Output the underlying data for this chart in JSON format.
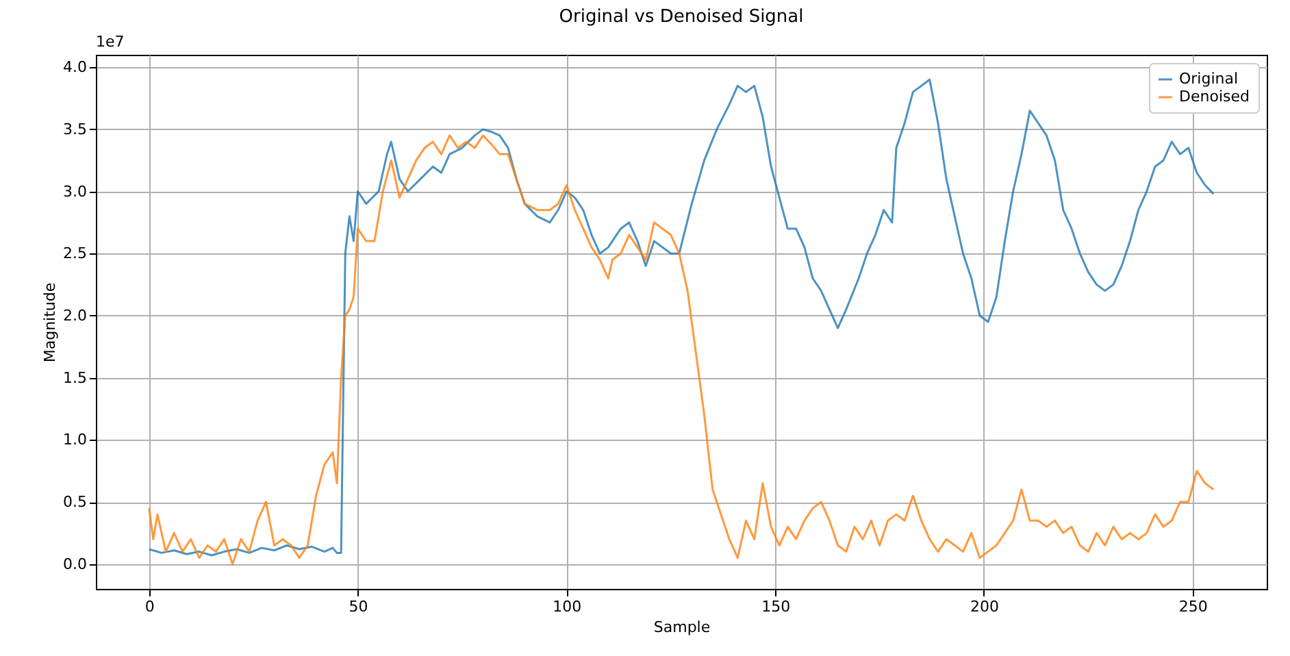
{
  "chart_data": {
    "type": "line",
    "title": "Original vs Denoised Signal",
    "xlabel": "Sample",
    "ylabel": "Magnitude",
    "annotations": [
      "1e7"
    ],
    "xlim": [
      -12.75,
      267.75
    ],
    "xticks": [
      0,
      50,
      100,
      150,
      200,
      250
    ],
    "ylim": [
      -0.2,
      4.1
    ],
    "yticks": [
      {
        "value": 0,
        "label": "0.0"
      },
      {
        "value": 0.5,
        "label": "0.5"
      },
      {
        "value": 1,
        "label": "1.0"
      },
      {
        "value": 1.5,
        "label": "1.5"
      },
      {
        "value": 2,
        "label": "2.0"
      },
      {
        "value": 2.5,
        "label": "2.5"
      },
      {
        "value": 3,
        "label": "3.0"
      },
      {
        "value": 3.5,
        "label": "3.5"
      },
      {
        "value": 4,
        "label": "4.0"
      }
    ],
    "grid": true,
    "legend": "top right",
    "line_style": "solid",
    "series": [
      {
        "name": "Original",
        "color": "#1f77b4",
        "x": [
          0,
          3,
          6,
          9,
          12,
          15,
          18,
          21,
          24,
          27,
          30,
          33,
          36,
          39,
          42,
          44,
          45,
          46,
          47,
          48,
          49,
          50,
          52,
          55,
          57,
          58,
          60,
          62,
          65,
          68,
          70,
          72,
          75,
          78,
          80,
          82,
          84,
          86,
          88,
          90,
          93,
          96,
          98,
          100,
          102,
          104,
          106,
          108,
          110,
          113,
          115,
          117,
          119,
          121,
          123,
          125,
          127,
          130,
          133,
          136,
          139,
          141,
          143,
          145,
          147,
          149,
          151,
          153,
          155,
          157,
          159,
          161,
          163,
          165,
          167,
          170,
          172,
          174,
          176,
          178,
          179,
          181,
          183,
          185,
          187,
          189,
          191,
          193,
          195,
          197,
          199,
          201,
          203,
          205,
          207,
          209,
          211,
          213,
          215,
          217,
          219,
          221,
          223,
          225,
          227,
          229,
          231,
          233,
          235,
          237,
          239,
          241,
          243,
          245,
          247,
          249,
          251,
          253,
          255
        ],
        "values": [
          0.12,
          0.09,
          0.11,
          0.08,
          0.1,
          0.07,
          0.1,
          0.12,
          0.09,
          0.13,
          0.11,
          0.15,
          0.12,
          0.14,
          0.1,
          0.13,
          0.09,
          0.09,
          2.5,
          2.8,
          2.6,
          3.0,
          2.9,
          3.0,
          3.3,
          3.4,
          3.1,
          3.0,
          3.1,
          3.2,
          3.15,
          3.3,
          3.35,
          3.45,
          3.5,
          3.48,
          3.45,
          3.35,
          3.1,
          2.9,
          2.8,
          2.75,
          2.85,
          3.0,
          2.95,
          2.85,
          2.65,
          2.5,
          2.55,
          2.7,
          2.75,
          2.6,
          2.4,
          2.6,
          2.55,
          2.5,
          2.5,
          2.9,
          3.25,
          3.5,
          3.7,
          3.85,
          3.8,
          3.85,
          3.6,
          3.2,
          2.95,
          2.7,
          2.7,
          2.55,
          2.3,
          2.2,
          2.05,
          1.9,
          2.05,
          2.3,
          2.5,
          2.65,
          2.85,
          2.75,
          3.35,
          3.55,
          3.8,
          3.85,
          3.9,
          3.55,
          3.1,
          2.8,
          2.5,
          2.3,
          2.0,
          1.95,
          2.15,
          2.6,
          3.0,
          3.3,
          3.65,
          3.55,
          3.45,
          3.25,
          2.85,
          2.7,
          2.5,
          2.35,
          2.25,
          2.2,
          2.25,
          2.4,
          2.6,
          2.85,
          3.0,
          3.2,
          3.25,
          3.4,
          3.3,
          3.35,
          3.15,
          3.05,
          2.98
        ]
      },
      {
        "name": "Denoised",
        "color": "#ff7f0e",
        "x": [
          0,
          1,
          2,
          4,
          6,
          8,
          10,
          12,
          14,
          16,
          18,
          20,
          22,
          24,
          26,
          28,
          30,
          32,
          34,
          36,
          38,
          40,
          42,
          44,
          45,
          46,
          47,
          48,
          49,
          50,
          52,
          54,
          56,
          58,
          60,
          62,
          64,
          66,
          68,
          70,
          72,
          74,
          76,
          78,
          80,
          82,
          84,
          86,
          88,
          90,
          93,
          96,
          98,
          100,
          102,
          104,
          106,
          108,
          110,
          111,
          113,
          115,
          117,
          119,
          121,
          123,
          125,
          127,
          129,
          131,
          133,
          135,
          137,
          139,
          141,
          143,
          145,
          147,
          149,
          151,
          153,
          155,
          157,
          159,
          161,
          163,
          165,
          167,
          169,
          171,
          173,
          175,
          177,
          179,
          181,
          183,
          185,
          187,
          189,
          191,
          193,
          195,
          197,
          199,
          201,
          203,
          205,
          207,
          209,
          211,
          213,
          215,
          217,
          219,
          221,
          223,
          225,
          227,
          229,
          231,
          233,
          235,
          237,
          239,
          241,
          243,
          245,
          247,
          249,
          251,
          253,
          255
        ],
        "values": [
          0.45,
          0.2,
          0.4,
          0.1,
          0.25,
          0.1,
          0.2,
          0.05,
          0.15,
          0.1,
          0.2,
          0.0,
          0.2,
          0.1,
          0.35,
          0.5,
          0.15,
          0.2,
          0.15,
          0.05,
          0.15,
          0.55,
          0.8,
          0.9,
          0.65,
          1.5,
          2.0,
          2.05,
          2.15,
          2.7,
          2.6,
          2.6,
          3.0,
          3.25,
          2.95,
          3.1,
          3.25,
          3.35,
          3.4,
          3.3,
          3.45,
          3.35,
          3.4,
          3.35,
          3.45,
          3.38,
          3.3,
          3.3,
          3.1,
          2.9,
          2.85,
          2.85,
          2.9,
          3.05,
          2.85,
          2.7,
          2.55,
          2.45,
          2.3,
          2.45,
          2.5,
          2.65,
          2.55,
          2.45,
          2.75,
          2.7,
          2.65,
          2.5,
          2.2,
          1.7,
          1.2,
          0.6,
          0.4,
          0.2,
          0.05,
          0.35,
          0.2,
          0.65,
          0.3,
          0.15,
          0.3,
          0.2,
          0.35,
          0.45,
          0.5,
          0.35,
          0.15,
          0.1,
          0.3,
          0.2,
          0.35,
          0.15,
          0.35,
          0.4,
          0.35,
          0.55,
          0.35,
          0.2,
          0.1,
          0.2,
          0.15,
          0.1,
          0.25,
          0.05,
          0.1,
          0.15,
          0.25,
          0.35,
          0.6,
          0.35,
          0.35,
          0.3,
          0.35,
          0.25,
          0.3,
          0.15,
          0.1,
          0.25,
          0.15,
          0.3,
          0.2,
          0.25,
          0.2,
          0.25,
          0.4,
          0.3,
          0.35,
          0.5,
          0.5,
          0.75,
          0.65,
          0.6
        ]
      }
    ]
  }
}
